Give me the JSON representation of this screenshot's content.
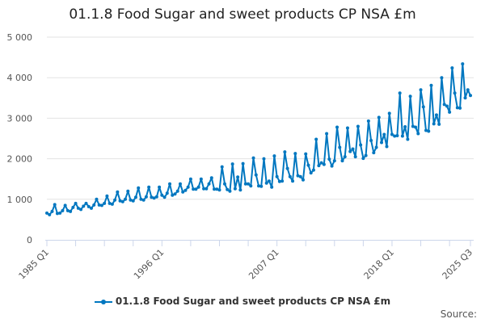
{
  "chart_data": {
    "type": "line",
    "title": "01.1.8 Food Sugar and sweet products CP NSA £m",
    "xlabel": "",
    "ylabel": "",
    "ylim": [
      0,
      5000
    ],
    "yticks": [
      0,
      1000,
      2000,
      3000,
      4000,
      5000
    ],
    "ytick_labels": [
      "0",
      "1 000",
      "2 000",
      "3 000",
      "4 000",
      "5 000"
    ],
    "start_year": 1985,
    "start_quarter": 1,
    "xtick_labels": [
      {
        "index": 0,
        "label": "1985 Q1"
      },
      {
        "index": 44,
        "label": "1996 Q1"
      },
      {
        "index": 88,
        "label": "2007 Q1"
      },
      {
        "index": 132,
        "label": "2018 Q1"
      },
      {
        "index": 162,
        "label": "2025 Q3"
      }
    ],
    "grid": true,
    "legend_position": "bottom",
    "series": [
      {
        "name": "01.1.8 Food Sugar and sweet products CP NSA £m",
        "color": "#0077c0",
        "values": [
          660,
          620,
          700,
          870,
          650,
          660,
          720,
          850,
          720,
          700,
          800,
          900,
          780,
          750,
          830,
          900,
          820,
          780,
          860,
          1000,
          860,
          850,
          900,
          1080,
          900,
          880,
          980,
          1180,
          960,
          940,
          1000,
          1200,
          980,
          960,
          1050,
          1280,
          1000,
          980,
          1060,
          1300,
          1050,
          1030,
          1060,
          1300,
          1100,
          1050,
          1150,
          1380,
          1100,
          1130,
          1200,
          1380,
          1180,
          1220,
          1300,
          1500,
          1250,
          1250,
          1300,
          1500,
          1260,
          1260,
          1380,
          1530,
          1250,
          1250,
          1230,
          1800,
          1380,
          1240,
          1200,
          1870,
          1260,
          1550,
          1230,
          1880,
          1380,
          1380,
          1330,
          2020,
          1600,
          1330,
          1320,
          2000,
          1400,
          1450,
          1300,
          2070,
          1560,
          1440,
          1450,
          2170,
          1760,
          1560,
          1450,
          2130,
          1580,
          1560,
          1480,
          2120,
          1840,
          1650,
          1720,
          2480,
          1830,
          1900,
          1860,
          2620,
          1990,
          1820,
          1950,
          2780,
          2280,
          1950,
          2050,
          2760,
          2180,
          2240,
          2050,
          2800,
          2340,
          2010,
          2080,
          2930,
          2450,
          2150,
          2280,
          3020,
          2400,
          2600,
          2300,
          3120,
          2600,
          2560,
          2570,
          3620,
          2560,
          2790,
          2480,
          3540,
          2800,
          2780,
          2620,
          3700,
          3280,
          2700,
          2680,
          3810,
          2860,
          3080,
          2850,
          4000,
          3340,
          3300,
          3150,
          4240,
          3620,
          3260,
          3250,
          4340,
          3500,
          3700,
          3560
        ]
      }
    ]
  },
  "source_label": "Source:"
}
